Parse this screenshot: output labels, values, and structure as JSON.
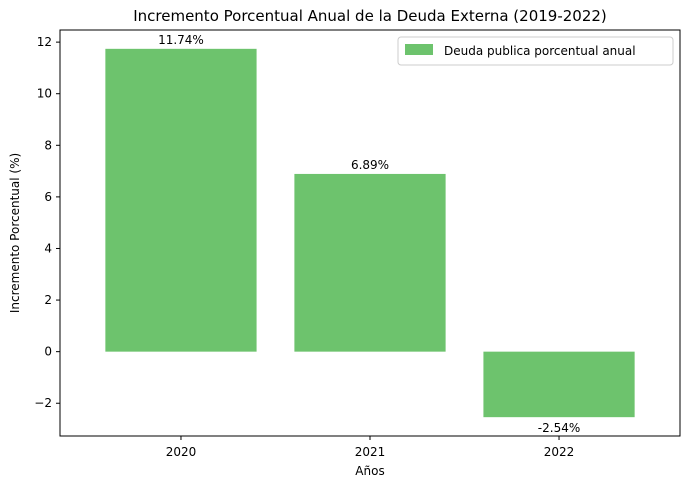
{
  "chart_data": {
    "type": "bar",
    "title": "Incremento Porcentual Anual de la Deuda Externa (2019-2022)",
    "xlabel": "Años",
    "ylabel": "Incremento Porcentual (%)",
    "categories": [
      "2020",
      "2021",
      "2022"
    ],
    "series": [
      {
        "name": "Deuda publica porcentual anual",
        "values": [
          11.74,
          6.89,
          -2.54
        ],
        "color": "#6dc36d"
      }
    ],
    "data_labels": [
      "11.74%",
      "6.89%",
      "-2.54%"
    ],
    "ylim": [
      -3.27,
      12.47
    ],
    "yticks": [
      -2,
      0,
      2,
      4,
      6,
      8,
      10,
      12
    ],
    "ytick_labels": [
      "−2",
      "0",
      "2",
      "4",
      "6",
      "8",
      "10",
      "12"
    ],
    "legend_position": "top-right",
    "grid": false
  }
}
